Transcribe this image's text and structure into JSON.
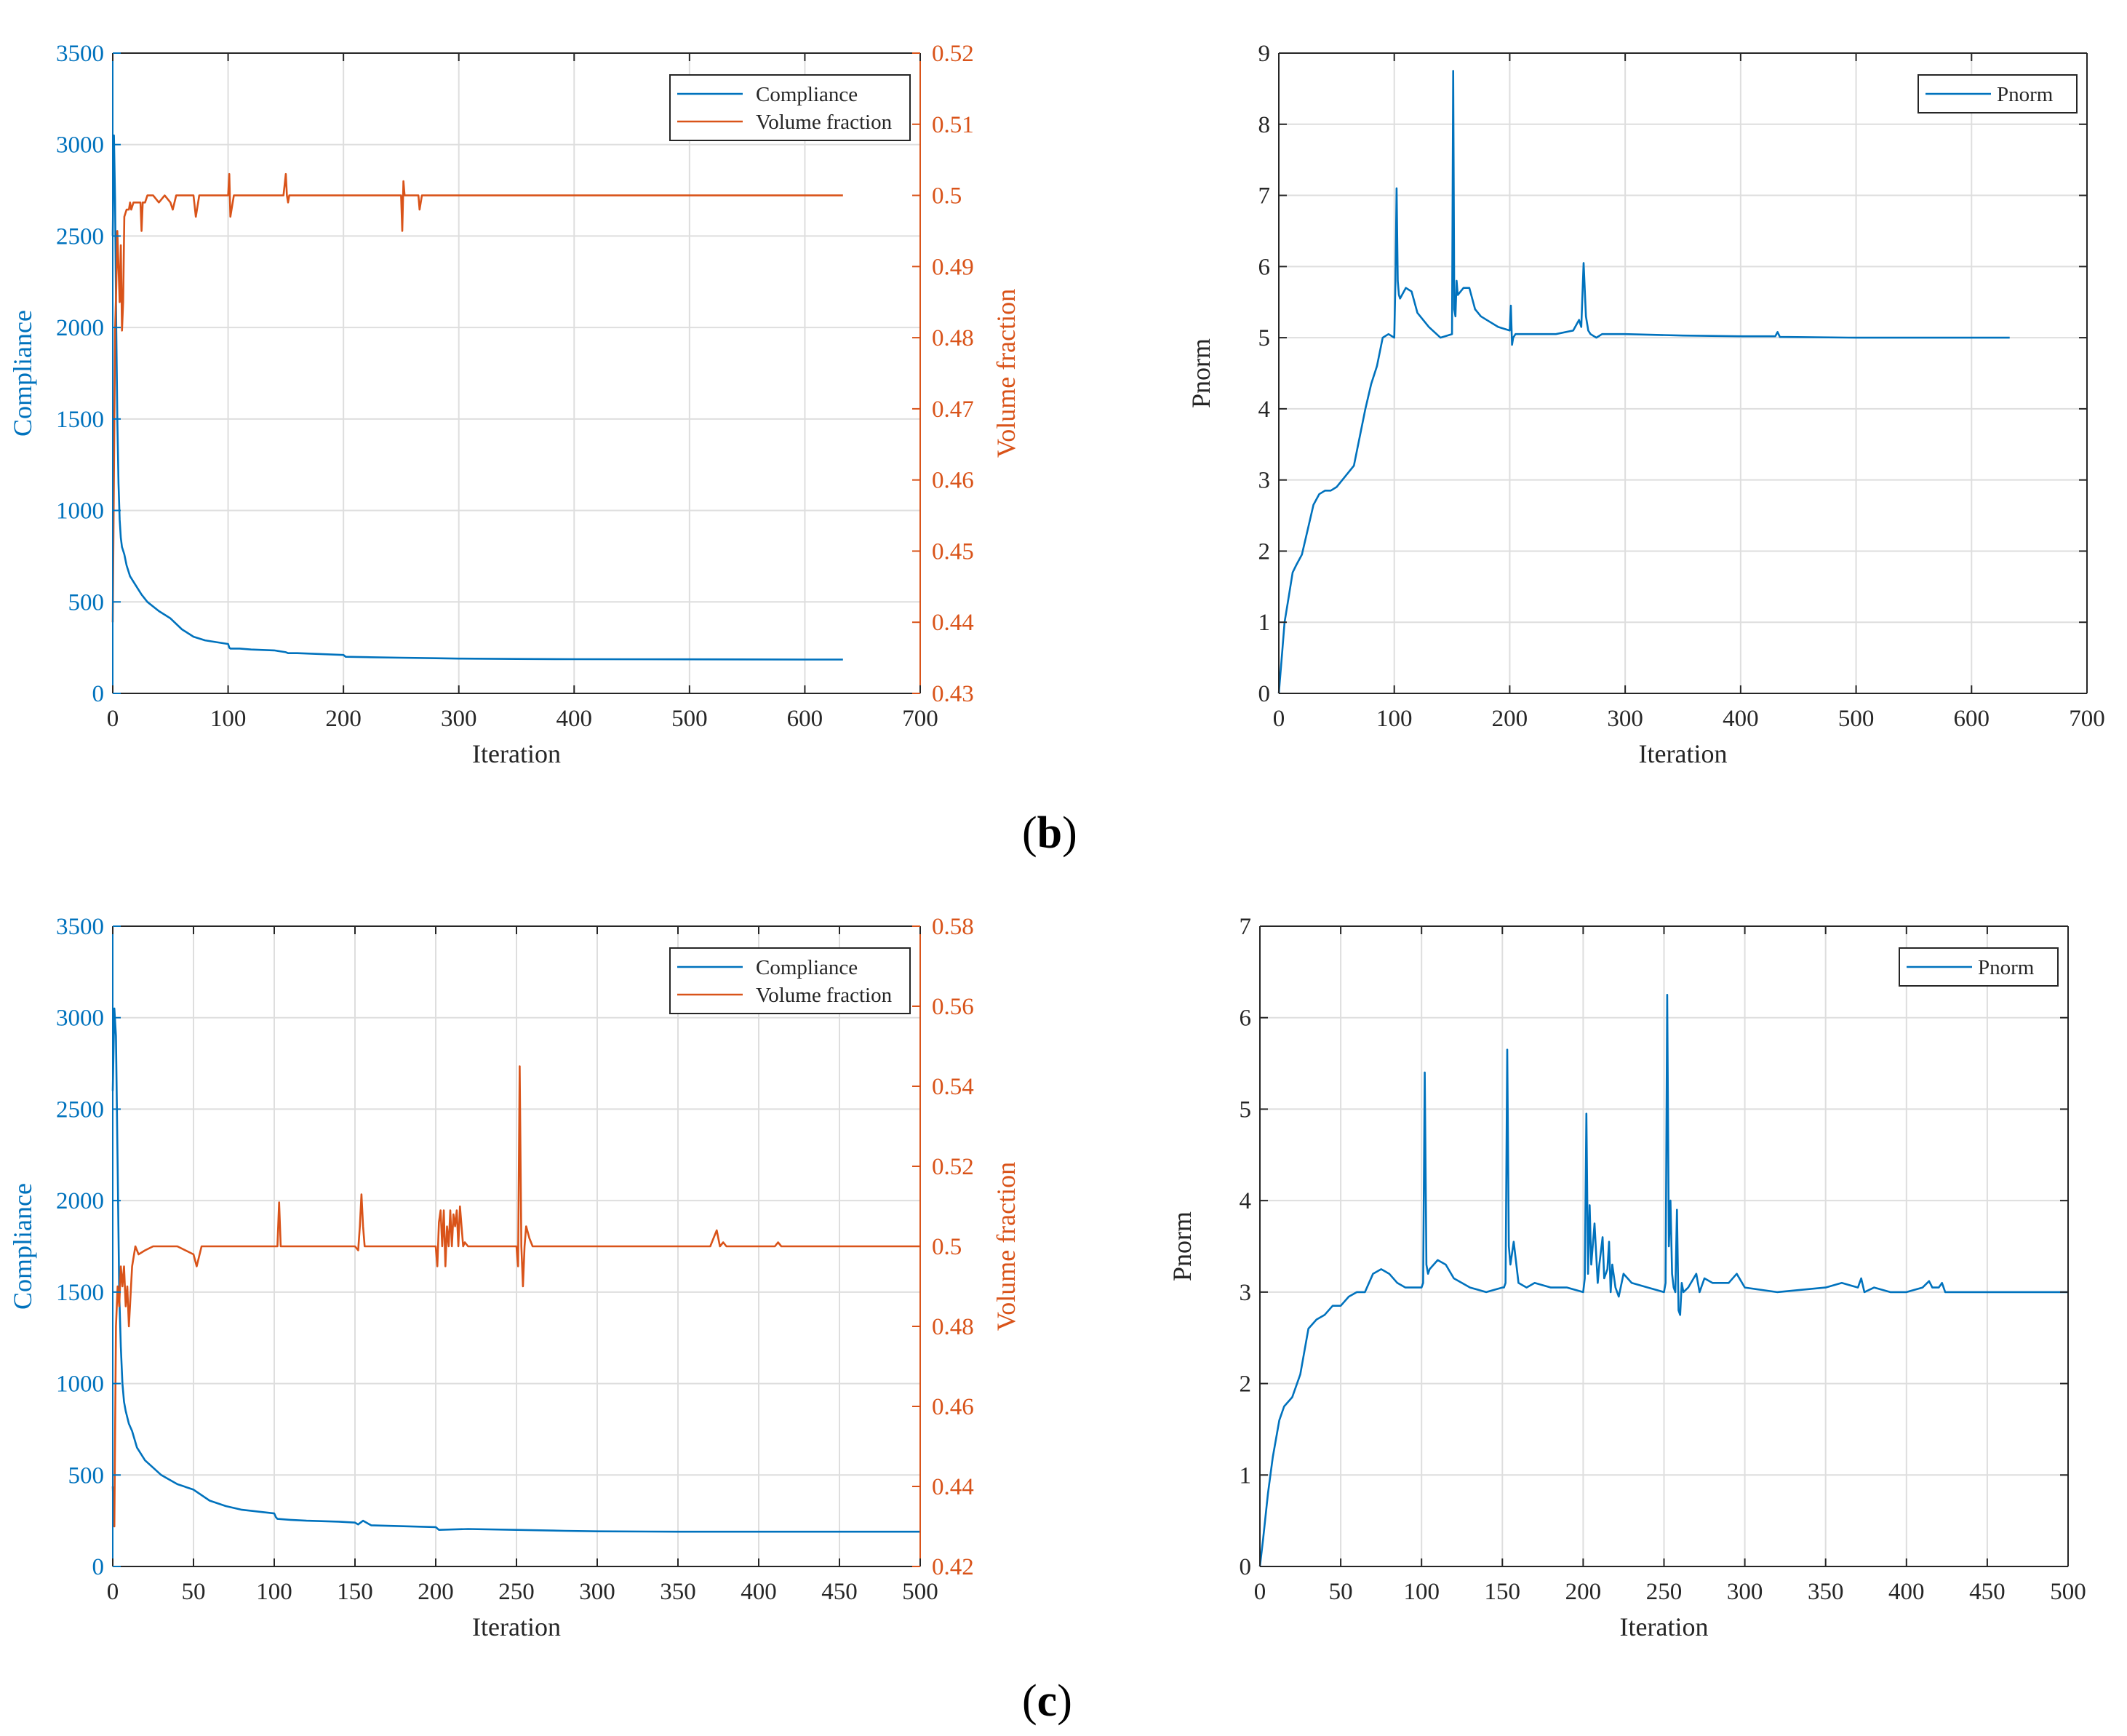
{
  "figure": {
    "panel_labels": [
      {
        "open": "(",
        "letter": "b",
        "close": ")"
      },
      {
        "open": "(",
        "letter": "c",
        "close": ")"
      }
    ]
  },
  "colors": {
    "compliance": "#0072BD",
    "volume": "#D95319",
    "grid": "#dedede",
    "axis": "#262626"
  },
  "chart_data": [
    {
      "id": "b-left",
      "type": "line",
      "title": "",
      "xlabel": "Iteration",
      "ylabel": "Compliance",
      "ylabel_right": "Volume fraction",
      "xlim": [
        0,
        700
      ],
      "ylim": [
        0,
        3500
      ],
      "ylim_right": [
        0.43,
        0.52
      ],
      "xticks": [
        "0",
        "100",
        "200",
        "300",
        "400",
        "500",
        "600",
        "700"
      ],
      "yticks": [
        "0",
        "500",
        "1000",
        "1500",
        "2000",
        "2500",
        "3000",
        "3500"
      ],
      "yticks_right": [
        "0.43",
        "0.44",
        "0.45",
        "0.46",
        "0.47",
        "0.48",
        "0.49",
        "0.5",
        "0.51",
        "0.52"
      ],
      "grid": true,
      "legend": {
        "position": "top-right",
        "entries": [
          "Compliance",
          "Volume fraction"
        ]
      },
      "series": [
        {
          "name": "Compliance",
          "axis": "left",
          "x": [
            0,
            1,
            2,
            3,
            4,
            5,
            6,
            7,
            8,
            10,
            12,
            15,
            20,
            25,
            30,
            40,
            50,
            60,
            70,
            80,
            90,
            100,
            101,
            102,
            110,
            120,
            140,
            150,
            152,
            160,
            180,
            200,
            202,
            220,
            250,
            280,
            300,
            350,
            400,
            500,
            600,
            633
          ],
          "y": [
            2500,
            3050,
            2700,
            2000,
            1500,
            1150,
            950,
            850,
            800,
            760,
            700,
            640,
            590,
            540,
            500,
            450,
            410,
            350,
            310,
            290,
            280,
            270,
            250,
            245,
            245,
            240,
            235,
            225,
            220,
            220,
            215,
            210,
            200,
            198,
            195,
            192,
            190,
            188,
            187,
            186,
            185,
            185
          ]
        },
        {
          "name": "Volume fraction",
          "axis": "right",
          "x": [
            0,
            2,
            3,
            4,
            5,
            6,
            7,
            8,
            9,
            10,
            12,
            14,
            15,
            16,
            18,
            20,
            24,
            25,
            26,
            28,
            30,
            35,
            40,
            45,
            50,
            52,
            55,
            60,
            65,
            70,
            72,
            75,
            80,
            90,
            100,
            101,
            102,
            103,
            104,
            105,
            108,
            110,
            120,
            130,
            140,
            148,
            150,
            151,
            152,
            153,
            155,
            160,
            180,
            200,
            220,
            240,
            250,
            251,
            252,
            253,
            254,
            255,
            260,
            265,
            266,
            268,
            270,
            280,
            300,
            400,
            500,
            600,
            633
          ],
          "y": [
            0.44,
            0.481,
            0.487,
            0.495,
            0.49,
            0.485,
            0.493,
            0.481,
            0.485,
            0.497,
            0.498,
            0.498,
            0.499,
            0.498,
            0.499,
            0.499,
            0.499,
            0.495,
            0.499,
            0.499,
            0.5,
            0.5,
            0.499,
            0.5,
            0.499,
            0.498,
            0.5,
            0.5,
            0.5,
            0.5,
            0.497,
            0.5,
            0.5,
            0.5,
            0.5,
            0.503,
            0.497,
            0.498,
            0.499,
            0.5,
            0.5,
            0.5,
            0.5,
            0.5,
            0.5,
            0.5,
            0.503,
            0.5,
            0.499,
            0.5,
            0.5,
            0.5,
            0.5,
            0.5,
            0.5,
            0.5,
            0.5,
            0.495,
            0.502,
            0.5,
            0.5,
            0.5,
            0.5,
            0.5,
            0.498,
            0.5,
            0.5,
            0.5,
            0.5,
            0.5,
            0.5,
            0.5,
            0.5
          ]
        }
      ]
    },
    {
      "id": "b-right",
      "type": "line",
      "title": "",
      "xlabel": "Iteration",
      "ylabel": "Pnorm",
      "xlim": [
        0,
        700
      ],
      "ylim": [
        0,
        9
      ],
      "xticks": [
        "0",
        "100",
        "200",
        "300",
        "400",
        "500",
        "600",
        "700"
      ],
      "yticks": [
        "0",
        "1",
        "2",
        "3",
        "4",
        "5",
        "6",
        "7",
        "8",
        "9"
      ],
      "grid": true,
      "legend": {
        "position": "top-right",
        "entries": [
          "Pnorm"
        ]
      },
      "series": [
        {
          "name": "Pnorm",
          "x": [
            0,
            3,
            5,
            8,
            12,
            15,
            20,
            25,
            30,
            35,
            40,
            45,
            50,
            55,
            60,
            65,
            70,
            75,
            80,
            85,
            90,
            95,
            100,
            101,
            102,
            103,
            104,
            105,
            110,
            115,
            120,
            130,
            140,
            150,
            151,
            152,
            153,
            154,
            155,
            160,
            165,
            170,
            175,
            180,
            190,
            200,
            201,
            202,
            203,
            205,
            210,
            220,
            240,
            255,
            260,
            262,
            264,
            266,
            268,
            270,
            275,
            280,
            300,
            350,
            400,
            430,
            432,
            434,
            500,
            600,
            633
          ],
          "y": [
            0,
            0.6,
            1,
            1.3,
            1.7,
            1.8,
            1.95,
            2.3,
            2.65,
            2.8,
            2.85,
            2.85,
            2.9,
            3.0,
            3.1,
            3.2,
            3.6,
            4.0,
            4.35,
            4.6,
            5.0,
            5.05,
            5.0,
            5.8,
            7.1,
            5.8,
            5.6,
            5.55,
            5.7,
            5.65,
            5.35,
            5.15,
            5.0,
            5.05,
            8.75,
            5.4,
            5.3,
            5.8,
            5.6,
            5.7,
            5.7,
            5.4,
            5.3,
            5.25,
            5.15,
            5.1,
            5.45,
            4.9,
            5.0,
            5.05,
            5.05,
            5.05,
            5.05,
            5.1,
            5.25,
            5.15,
            6.05,
            5.3,
            5.1,
            5.05,
            5.0,
            5.05,
            5.05,
            5.03,
            5.02,
            5.02,
            5.08,
            5.01,
            5.0,
            5.0,
            5.0
          ]
        }
      ]
    },
    {
      "id": "c-left",
      "type": "line",
      "title": "",
      "xlabel": "Iteration",
      "ylabel": "Compliance",
      "ylabel_right": "Volume fraction",
      "xlim": [
        0,
        500
      ],
      "ylim": [
        0,
        3500
      ],
      "ylim_right": [
        0.42,
        0.58
      ],
      "xticks": [
        "0",
        "50",
        "100",
        "150",
        "200",
        "250",
        "300",
        "350",
        "400",
        "450",
        "500"
      ],
      "yticks": [
        "0",
        "500",
        "1000",
        "1500",
        "2000",
        "2500",
        "3000",
        "3500"
      ],
      "yticks_right": [
        "0.42",
        "0.44",
        "0.46",
        "0.48",
        "0.5",
        "0.52",
        "0.54",
        "0.56",
        "0.58"
      ],
      "grid": true,
      "legend": {
        "position": "top-right",
        "entries": [
          "Compliance",
          "Volume fraction"
        ]
      },
      "series": [
        {
          "name": "Compliance",
          "axis": "left",
          "x": [
            0,
            1,
            2,
            3,
            4,
            5,
            6,
            7,
            8,
            10,
            12,
            15,
            20,
            25,
            30,
            40,
            50,
            60,
            70,
            80,
            90,
            100,
            101,
            102,
            110,
            120,
            140,
            150,
            152,
            155,
            160,
            180,
            200,
            202,
            220,
            250,
            280,
            300,
            350,
            400,
            450,
            500
          ],
          "y": [
            2600,
            3050,
            2900,
            2200,
            1500,
            1200,
            1000,
            900,
            850,
            780,
            740,
            650,
            580,
            540,
            500,
            450,
            420,
            360,
            330,
            310,
            300,
            290,
            270,
            260,
            255,
            250,
            245,
            240,
            230,
            250,
            225,
            220,
            215,
            200,
            205,
            200,
            195,
            192,
            190,
            190,
            190,
            190
          ]
        },
        {
          "name": "Volume fraction",
          "axis": "right",
          "x": [
            0,
            1,
            2,
            3,
            4,
            5,
            6,
            7,
            8,
            9,
            10,
            12,
            14,
            16,
            20,
            25,
            30,
            40,
            50,
            52,
            55,
            60,
            65,
            70,
            80,
            90,
            100,
            102,
            103,
            104,
            105,
            110,
            120,
            130,
            140,
            150,
            152,
            153,
            154,
            155,
            156,
            160,
            170,
            180,
            190,
            200,
            201,
            202,
            203,
            204,
            205,
            206,
            207,
            208,
            209,
            210,
            211,
            212,
            213,
            214,
            215,
            216,
            217,
            218,
            220,
            225,
            230,
            240,
            250,
            251,
            252,
            253,
            254,
            255,
            256,
            258,
            260,
            262,
            265,
            270,
            280,
            300,
            350,
            370,
            372,
            374,
            376,
            378,
            380,
            382,
            385,
            390,
            400,
            410,
            412,
            414,
            420,
            450,
            500
          ],
          "y": [
            0.44,
            0.43,
            0.48,
            0.49,
            0.485,
            0.495,
            0.49,
            0.495,
            0.485,
            0.49,
            0.48,
            0.495,
            0.5,
            0.498,
            0.499,
            0.5,
            0.5,
            0.5,
            0.498,
            0.495,
            0.5,
            0.5,
            0.5,
            0.5,
            0.5,
            0.5,
            0.5,
            0.5,
            0.511,
            0.5,
            0.5,
            0.5,
            0.5,
            0.5,
            0.5,
            0.5,
            0.499,
            0.505,
            0.513,
            0.505,
            0.5,
            0.5,
            0.5,
            0.5,
            0.5,
            0.5,
            0.495,
            0.506,
            0.509,
            0.5,
            0.509,
            0.495,
            0.505,
            0.5,
            0.509,
            0.5,
            0.508,
            0.505,
            0.509,
            0.5,
            0.51,
            0.505,
            0.5,
            0.501,
            0.5,
            0.5,
            0.5,
            0.5,
            0.5,
            0.495,
            0.545,
            0.5,
            0.49,
            0.5,
            0.505,
            0.502,
            0.5,
            0.5,
            0.5,
            0.5,
            0.5,
            0.5,
            0.5,
            0.5,
            0.502,
            0.504,
            0.5,
            0.501,
            0.5,
            0.5,
            0.5,
            0.5,
            0.5,
            0.5,
            0.501,
            0.5,
            0.5,
            0.5,
            0.5
          ]
        }
      ]
    },
    {
      "id": "c-right",
      "type": "line",
      "title": "",
      "xlabel": "Iteration",
      "ylabel": "Pnorm",
      "xlim": [
        0,
        500
      ],
      "ylim": [
        0,
        7
      ],
      "xticks": [
        "0",
        "50",
        "100",
        "150",
        "200",
        "250",
        "300",
        "350",
        "400",
        "450",
        "500"
      ],
      "yticks": [
        "0",
        "1",
        "2",
        "3",
        "4",
        "5",
        "6",
        "7"
      ],
      "grid": true,
      "legend": {
        "position": "top-right",
        "entries": [
          "Pnorm"
        ]
      },
      "series": [
        {
          "name": "Pnorm",
          "x": [
            0,
            2,
            5,
            8,
            12,
            15,
            20,
            25,
            30,
            35,
            40,
            45,
            50,
            55,
            60,
            65,
            70,
            75,
            80,
            85,
            90,
            95,
            100,
            101,
            102,
            103,
            104,
            105,
            110,
            115,
            120,
            130,
            140,
            150,
            151,
            152,
            153,
            154,
            155,
            157,
            160,
            165,
            170,
            180,
            190,
            200,
            201,
            202,
            203,
            204,
            205,
            207,
            209,
            210,
            212,
            213,
            215,
            216,
            217,
            218,
            220,
            222,
            225,
            230,
            240,
            250,
            251,
            252,
            253,
            254,
            255,
            256,
            257,
            258,
            259,
            260,
            261,
            262,
            265,
            270,
            272,
            275,
            280,
            285,
            290,
            295,
            300,
            320,
            350,
            360,
            370,
            372,
            374,
            380,
            390,
            400,
            410,
            414,
            416,
            420,
            422,
            424,
            430,
            450,
            500
          ],
          "y": [
            0,
            0.3,
            0.8,
            1.2,
            1.6,
            1.75,
            1.85,
            2.1,
            2.6,
            2.7,
            2.75,
            2.85,
            2.85,
            2.95,
            3.0,
            3.0,
            3.2,
            3.25,
            3.2,
            3.1,
            3.05,
            3.05,
            3.05,
            3.1,
            5.4,
            3.3,
            3.2,
            3.25,
            3.35,
            3.3,
            3.15,
            3.05,
            3.0,
            3.05,
            3.05,
            3.1,
            5.65,
            3.5,
            3.3,
            3.55,
            3.1,
            3.05,
            3.1,
            3.05,
            3.05,
            3.0,
            3.15,
            4.95,
            3.2,
            3.95,
            3.3,
            3.75,
            3.1,
            3.3,
            3.6,
            3.15,
            3.25,
            3.55,
            3.0,
            3.3,
            3.05,
            2.95,
            3.2,
            3.1,
            3.05,
            3.0,
            3.1,
            6.25,
            3.5,
            4.0,
            3.2,
            3.05,
            3.0,
            3.9,
            2.8,
            2.75,
            3.1,
            3.0,
            3.05,
            3.2,
            3.0,
            3.15,
            3.1,
            3.1,
            3.1,
            3.2,
            3.05,
            3.0,
            3.05,
            3.1,
            3.05,
            3.15,
            3.0,
            3.05,
            3.0,
            3.0,
            3.05,
            3.12,
            3.05,
            3.05,
            3.1,
            3.0,
            3.0,
            3.0,
            3.0
          ]
        }
      ]
    }
  ]
}
